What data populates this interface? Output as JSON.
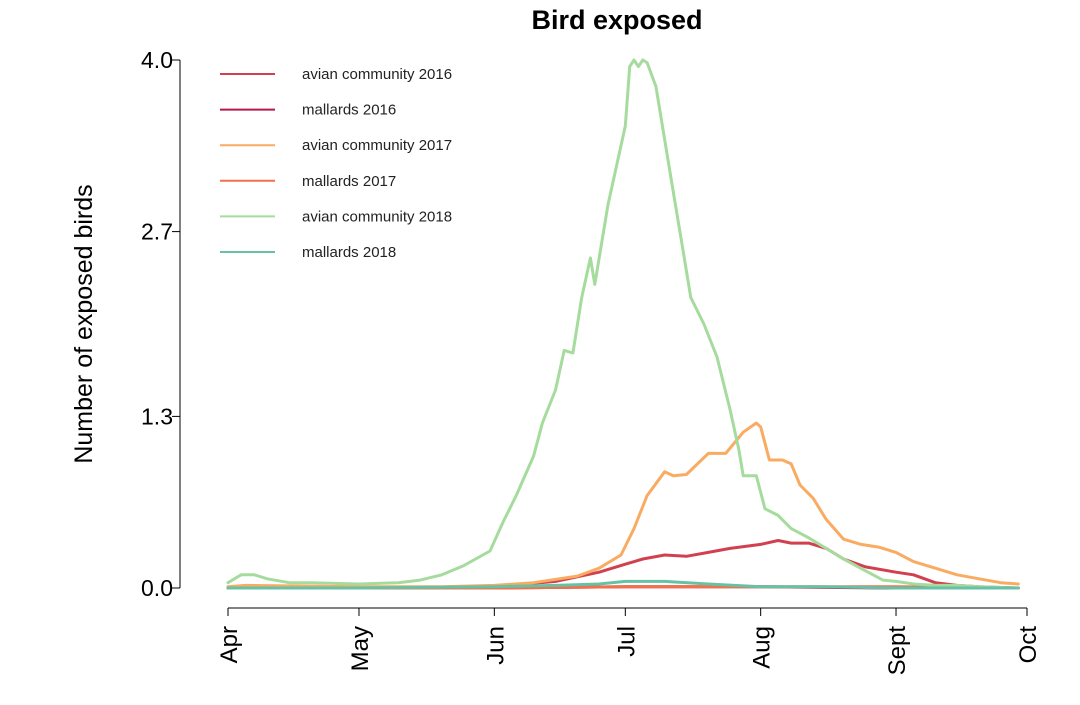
{
  "chart_data": {
    "type": "line",
    "title": "Bird exposed",
    "xlabel": "",
    "ylabel": "Number of exposed birds",
    "x_ticks": [
      "Apr",
      "May",
      "Jun",
      "Jul",
      "Aug",
      "Sept",
      "Oct"
    ],
    "y_ticks": [
      "0.0",
      "1.3",
      "2.7",
      "4.0"
    ],
    "x_range": [
      "Apr 1",
      "Oct 1"
    ],
    "ylim": [
      0,
      4.0
    ],
    "grid": false,
    "legend_position": "top-left",
    "series": [
      {
        "name": "avian community 2016",
        "color": "#d2404f",
        "points": [
          [
            "Apr 1",
            0
          ],
          [
            "May 1",
            0
          ],
          [
            "May 15",
            0
          ],
          [
            "Jun 1",
            0.01
          ],
          [
            "Jun 15",
            0.05
          ],
          [
            "Jun 25",
            0.12
          ],
          [
            "Jul 1",
            0.18
          ],
          [
            "Jul 5",
            0.22
          ],
          [
            "Jul 10",
            0.25
          ],
          [
            "Jul 15",
            0.24
          ],
          [
            "Jul 20",
            0.27
          ],
          [
            "Jul 25",
            0.3
          ],
          [
            "Aug 1",
            0.33
          ],
          [
            "Aug 5",
            0.36
          ],
          [
            "Aug 8",
            0.34
          ],
          [
            "Aug 12",
            0.34
          ],
          [
            "Aug 16",
            0.3
          ],
          [
            "Aug 20",
            0.22
          ],
          [
            "Aug 25",
            0.16
          ],
          [
            "Sep 1",
            0.12
          ],
          [
            "Sep 5",
            0.1
          ],
          [
            "Sep 10",
            0.04
          ],
          [
            "Sep 15",
            0.02
          ],
          [
            "Sep 20",
            0.01
          ],
          [
            "Sep 29",
            0
          ]
        ]
      },
      {
        "name": "mallards 2016",
        "color": "#b2184a",
        "points": [
          [
            "Apr 1",
            0
          ],
          [
            "Jun 1",
            0
          ],
          [
            "Jul 1",
            0.01
          ],
          [
            "Aug 1",
            0.01
          ],
          [
            "Sep 1",
            0
          ],
          [
            "Sep 29",
            0
          ]
        ]
      },
      {
        "name": "avian community 2017",
        "color": "#f9ab62",
        "points": [
          [
            "Apr 1",
            0.01
          ],
          [
            "Apr 5",
            0.02
          ],
          [
            "May 1",
            0.01
          ],
          [
            "May 20",
            0.01
          ],
          [
            "Jun 1",
            0.02
          ],
          [
            "Jun 10",
            0.04
          ],
          [
            "Jun 20",
            0.09
          ],
          [
            "Jun 25",
            0.15
          ],
          [
            "Jun 30",
            0.25
          ],
          [
            "Jul 3",
            0.45
          ],
          [
            "Jul 6",
            0.7
          ],
          [
            "Jul 10",
            0.88
          ],
          [
            "Jul 12",
            0.85
          ],
          [
            "Jul 15",
            0.86
          ],
          [
            "Jul 20",
            1.02
          ],
          [
            "Jul 24",
            1.02
          ],
          [
            "Jul 28",
            1.18
          ],
          [
            "Jul 31",
            1.25
          ],
          [
            "Aug 1",
            1.22
          ],
          [
            "Aug 3",
            0.97
          ],
          [
            "Aug 6",
            0.97
          ],
          [
            "Aug 8",
            0.94
          ],
          [
            "Aug 10",
            0.78
          ],
          [
            "Aug 13",
            0.68
          ],
          [
            "Aug 16",
            0.52
          ],
          [
            "Aug 20",
            0.37
          ],
          [
            "Aug 24",
            0.33
          ],
          [
            "Aug 28",
            0.31
          ],
          [
            "Sep 1",
            0.27
          ],
          [
            "Sep 5",
            0.2
          ],
          [
            "Sep 10",
            0.15
          ],
          [
            "Sep 15",
            0.1
          ],
          [
            "Sep 20",
            0.07
          ],
          [
            "Sep 25",
            0.04
          ],
          [
            "Sep 29",
            0.03
          ]
        ]
      },
      {
        "name": "mallards 2017",
        "color": "#f0714c",
        "points": [
          [
            "Apr 1",
            0
          ],
          [
            "Jun 1",
            0
          ],
          [
            "Jul 1",
            0.01
          ],
          [
            "Aug 1",
            0.01
          ],
          [
            "Sep 1",
            0.01
          ],
          [
            "Sep 29",
            0
          ]
        ]
      },
      {
        "name": "avian community 2018",
        "color": "#a6db9e",
        "points": [
          [
            "Apr 1",
            0.04
          ],
          [
            "Apr 4",
            0.1
          ],
          [
            "Apr 7",
            0.1
          ],
          [
            "Apr 10",
            0.07
          ],
          [
            "Apr 15",
            0.04
          ],
          [
            "Apr 20",
            0.04
          ],
          [
            "May 1",
            0.03
          ],
          [
            "May 10",
            0.04
          ],
          [
            "May 15",
            0.06
          ],
          [
            "May 20",
            0.1
          ],
          [
            "May 25",
            0.17
          ],
          [
            "May 31",
            0.28
          ],
          [
            "Jun 3",
            0.5
          ],
          [
            "Jun 6",
            0.7
          ],
          [
            "Jun 10",
            1.0
          ],
          [
            "Jun 12",
            1.25
          ],
          [
            "Jun 15",
            1.5
          ],
          [
            "Jun 17",
            1.8
          ],
          [
            "Jun 19",
            1.78
          ],
          [
            "Jun 21",
            2.2
          ],
          [
            "Jun 23",
            2.5
          ],
          [
            "Jun 24",
            2.3
          ],
          [
            "Jun 27",
            2.9
          ],
          [
            "Jun 29",
            3.2
          ],
          [
            "Jul 1",
            3.5
          ],
          [
            "Jul 2",
            3.95
          ],
          [
            "Jul 3",
            4.0
          ],
          [
            "Jul 4",
            3.95
          ],
          [
            "Jul 5",
            4.0
          ],
          [
            "Jul 6",
            3.98
          ],
          [
            "Jul 8",
            3.8
          ],
          [
            "Jul 10",
            3.4
          ],
          [
            "Jul 12",
            3.0
          ],
          [
            "Jul 14",
            2.6
          ],
          [
            "Jul 16",
            2.2
          ],
          [
            "Jul 19",
            2.0
          ],
          [
            "Jul 22",
            1.75
          ],
          [
            "Jul 25",
            1.35
          ],
          [
            "Jul 27",
            1.05
          ],
          [
            "Jul 28",
            0.85
          ],
          [
            "Jul 31",
            0.85
          ],
          [
            "Aug 2",
            0.6
          ],
          [
            "Aug 5",
            0.55
          ],
          [
            "Aug 8",
            0.45
          ],
          [
            "Aug 12",
            0.38
          ],
          [
            "Aug 16",
            0.3
          ],
          [
            "Aug 20",
            0.22
          ],
          [
            "Aug 25",
            0.13
          ],
          [
            "Aug 29",
            0.06
          ],
          [
            "Sep 1",
            0.05
          ],
          [
            "Sep 5",
            0.03
          ],
          [
            "Sep 10",
            0.02
          ],
          [
            "Sep 15",
            0.02
          ],
          [
            "Sep 20",
            0.01
          ],
          [
            "Sep 29",
            0
          ]
        ]
      },
      {
        "name": "mallards 2018",
        "color": "#66c2a5",
        "points": [
          [
            "Apr 1",
            0
          ],
          [
            "May 1",
            0
          ],
          [
            "Jun 1",
            0.01
          ],
          [
            "Jun 15",
            0.02
          ],
          [
            "Jun 25",
            0.03
          ],
          [
            "Jul 1",
            0.05
          ],
          [
            "Jul 10",
            0.05
          ],
          [
            "Jul 20",
            0.03
          ],
          [
            "Aug 1",
            0.01
          ],
          [
            "Aug 15",
            0.01
          ],
          [
            "Sep 1",
            0
          ],
          [
            "Sep 29",
            0
          ]
        ]
      }
    ]
  }
}
